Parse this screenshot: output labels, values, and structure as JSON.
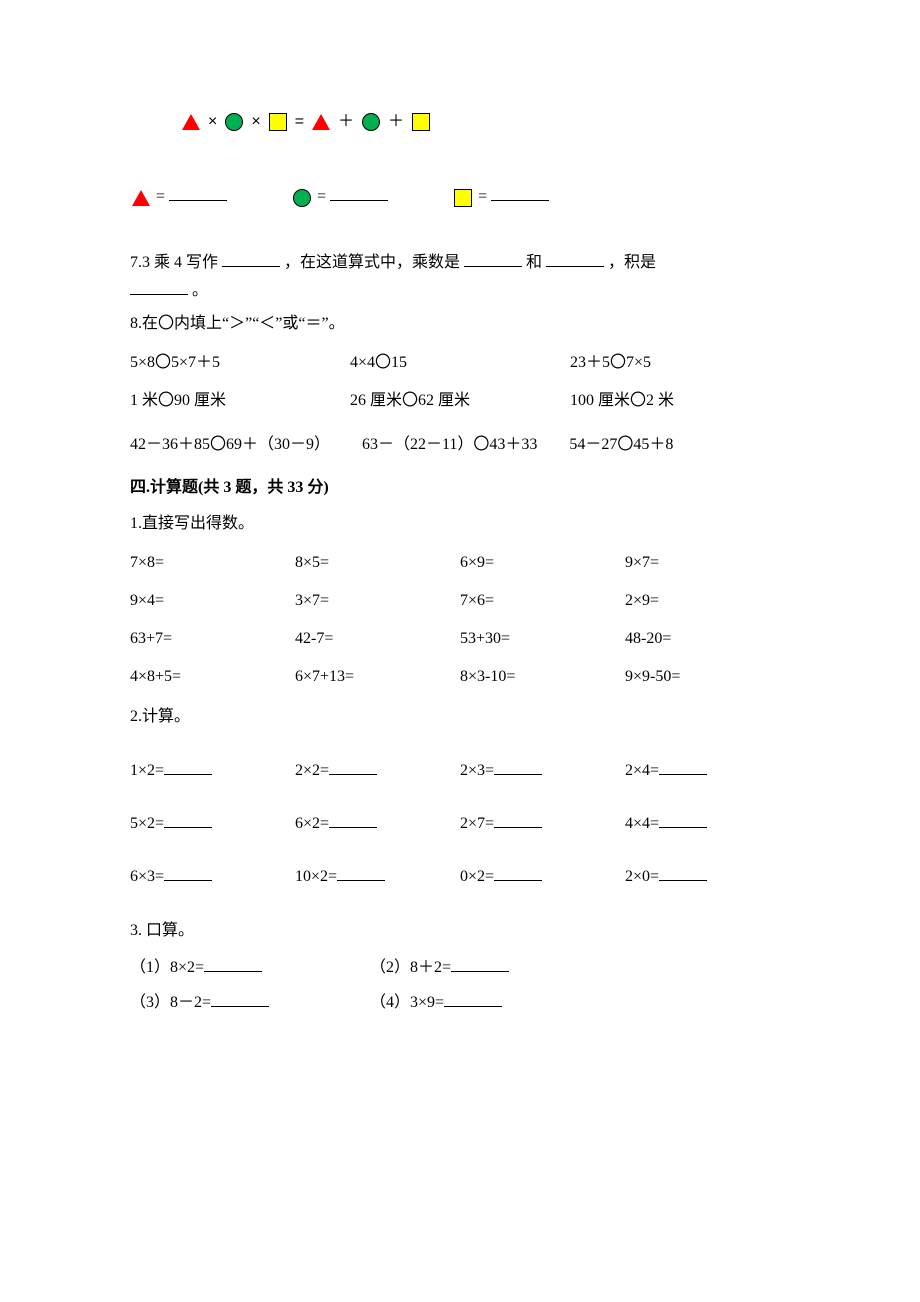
{
  "colors": {
    "triangle_fill": "#ff0000",
    "circle_fill": "#00b050",
    "square_fill": "#ffff00",
    "text": "#000000",
    "background": "#ffffff"
  },
  "typography": {
    "body_font": "SimSun",
    "body_size_pt": 12,
    "line_height": 1.5
  },
  "equation": {
    "ops": [
      "×",
      "×",
      "=",
      "＋",
      "＋"
    ],
    "answers": {
      "eq": "=",
      "tri": "",
      "circ": "",
      "sq": ""
    }
  },
  "q7": {
    "text_a": "7.3 乘 4 写作",
    "text_b": "，在这道算式中，乘数是",
    "text_c": "和",
    "text_d": "，积是",
    "text_e": "。"
  },
  "q8": {
    "title": "8.在〇内填上“＞”“＜”或“＝”。",
    "row1": [
      "5×8〇5×7＋5",
      "4×4〇15",
      "23＋5〇7×5"
    ],
    "row2": [
      "1 米〇90 厘米",
      "26 厘米〇62 厘米",
      "100 厘米〇2 米"
    ],
    "row3": "42－36＋85〇69＋（30－9）  63－（22－11）〇43＋33  54－27〇45＋8"
  },
  "section4": {
    "title": "四.计算题(共 3 题，共 33 分)",
    "q1": {
      "title": "1.直接写出得数。",
      "rows": [
        [
          "7×8=",
          "8×5=",
          "6×9=",
          "9×7="
        ],
        [
          "9×4=",
          "3×7=",
          "7×6=",
          "2×9="
        ],
        [
          "63+7=",
          "42-7=",
          "53+30=",
          "48-20="
        ],
        [
          "4×8+5=",
          "6×7+13=",
          "8×3-10=",
          "9×9-50="
        ]
      ]
    },
    "q2": {
      "title": "2.计算。",
      "rows": [
        [
          "1×2=",
          "2×2=",
          "2×3=",
          "2×4="
        ],
        [
          "5×2=",
          "6×2=",
          "2×7=",
          "4×4="
        ],
        [
          "6×3=",
          "10×2=",
          "0×2=",
          "2×0="
        ]
      ]
    },
    "q3": {
      "title": "3.  口算。",
      "rows": [
        [
          "（1）8×2=",
          "（2）8＋2="
        ],
        [
          "（3）8－2=",
          "（4）3×9="
        ]
      ]
    }
  }
}
